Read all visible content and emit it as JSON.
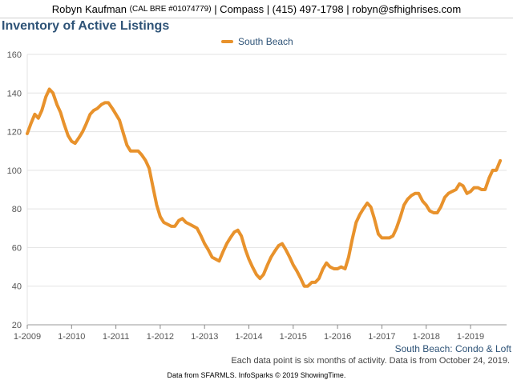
{
  "header": {
    "name": "Robyn Kaufman",
    "license": "(CAL BRE #01074779)",
    "rest": "| Compass | (415) 497-1798 | robyn@sfhighrises.com"
  },
  "chart_data": {
    "type": "line",
    "title": "Inventory of Active Listings",
    "xlabel": "",
    "ylabel": "",
    "xlim": [
      2009,
      2019.75
    ],
    "ylim": [
      20,
      160
    ],
    "y_ticks": [
      20,
      40,
      60,
      80,
      100,
      120,
      140,
      160
    ],
    "x_tick_labels": [
      "1-2009",
      "1-2010",
      "1-2011",
      "1-2012",
      "1-2013",
      "1-2014",
      "1-2015",
      "1-2016",
      "1-2017",
      "1-2018",
      "1-2019"
    ],
    "grid": "horizontal",
    "legend": "top-center",
    "line_color": "#e8922c",
    "series": [
      {
        "name": "South Beach",
        "points": [
          [
            2009.0,
            119
          ],
          [
            2009.08,
            124
          ],
          [
            2009.17,
            129
          ],
          [
            2009.25,
            127
          ],
          [
            2009.33,
            131
          ],
          [
            2009.42,
            138
          ],
          [
            2009.5,
            142
          ],
          [
            2009.58,
            140
          ],
          [
            2009.67,
            134
          ],
          [
            2009.75,
            130
          ],
          [
            2009.83,
            124
          ],
          [
            2009.92,
            118
          ],
          [
            2010.0,
            115
          ],
          [
            2010.08,
            114
          ],
          [
            2010.17,
            117
          ],
          [
            2010.25,
            120
          ],
          [
            2010.33,
            124
          ],
          [
            2010.42,
            129
          ],
          [
            2010.5,
            131
          ],
          [
            2010.58,
            132
          ],
          [
            2010.67,
            134
          ],
          [
            2010.75,
            135
          ],
          [
            2010.83,
            135
          ],
          [
            2010.92,
            132
          ],
          [
            2011.0,
            129
          ],
          [
            2011.08,
            126
          ],
          [
            2011.17,
            119
          ],
          [
            2011.25,
            113
          ],
          [
            2011.33,
            110
          ],
          [
            2011.42,
            110
          ],
          [
            2011.5,
            110
          ],
          [
            2011.58,
            108
          ],
          [
            2011.67,
            105
          ],
          [
            2011.75,
            101
          ],
          [
            2011.83,
            92
          ],
          [
            2011.92,
            82
          ],
          [
            2012.0,
            76
          ],
          [
            2012.08,
            73
          ],
          [
            2012.17,
            72
          ],
          [
            2012.25,
            71
          ],
          [
            2012.33,
            71
          ],
          [
            2012.42,
            74
          ],
          [
            2012.5,
            75
          ],
          [
            2012.58,
            73
          ],
          [
            2012.67,
            72
          ],
          [
            2012.75,
            71
          ],
          [
            2012.83,
            70
          ],
          [
            2012.92,
            66
          ],
          [
            2013.0,
            62
          ],
          [
            2013.08,
            59
          ],
          [
            2013.17,
            55
          ],
          [
            2013.25,
            54
          ],
          [
            2013.33,
            53
          ],
          [
            2013.42,
            58
          ],
          [
            2013.5,
            62
          ],
          [
            2013.58,
            65
          ],
          [
            2013.67,
            68
          ],
          [
            2013.75,
            69
          ],
          [
            2013.83,
            66
          ],
          [
            2013.92,
            59
          ],
          [
            2014.0,
            54
          ],
          [
            2014.08,
            50
          ],
          [
            2014.17,
            46
          ],
          [
            2014.25,
            44
          ],
          [
            2014.33,
            46
          ],
          [
            2014.42,
            51
          ],
          [
            2014.5,
            55
          ],
          [
            2014.58,
            58
          ],
          [
            2014.67,
            61
          ],
          [
            2014.75,
            62
          ],
          [
            2014.83,
            59
          ],
          [
            2014.92,
            55
          ],
          [
            2015.0,
            51
          ],
          [
            2015.08,
            48
          ],
          [
            2015.17,
            44
          ],
          [
            2015.25,
            40
          ],
          [
            2015.33,
            40
          ],
          [
            2015.42,
            42
          ],
          [
            2015.5,
            42
          ],
          [
            2015.58,
            44
          ],
          [
            2015.67,
            49
          ],
          [
            2015.75,
            52
          ],
          [
            2015.83,
            50
          ],
          [
            2015.92,
            49
          ],
          [
            2016.0,
            49
          ],
          [
            2016.08,
            50
          ],
          [
            2016.17,
            49
          ],
          [
            2016.25,
            55
          ],
          [
            2016.33,
            64
          ],
          [
            2016.42,
            73
          ],
          [
            2016.5,
            77
          ],
          [
            2016.58,
            80
          ],
          [
            2016.67,
            83
          ],
          [
            2016.75,
            81
          ],
          [
            2016.83,
            75
          ],
          [
            2016.92,
            67
          ],
          [
            2017.0,
            65
          ],
          [
            2017.08,
            65
          ],
          [
            2017.17,
            65
          ],
          [
            2017.25,
            66
          ],
          [
            2017.33,
            70
          ],
          [
            2017.42,
            76
          ],
          [
            2017.5,
            82
          ],
          [
            2017.58,
            85
          ],
          [
            2017.67,
            87
          ],
          [
            2017.75,
            88
          ],
          [
            2017.83,
            88
          ],
          [
            2017.92,
            84
          ],
          [
            2018.0,
            82
          ],
          [
            2018.08,
            79
          ],
          [
            2018.17,
            78
          ],
          [
            2018.25,
            78
          ],
          [
            2018.33,
            81
          ],
          [
            2018.42,
            86
          ],
          [
            2018.5,
            88
          ],
          [
            2018.58,
            89
          ],
          [
            2018.67,
            90
          ],
          [
            2018.75,
            93
          ],
          [
            2018.83,
            92
          ],
          [
            2018.92,
            88
          ],
          [
            2019.0,
            89
          ],
          [
            2019.08,
            91
          ],
          [
            2019.17,
            91
          ],
          [
            2019.25,
            90
          ],
          [
            2019.33,
            90
          ],
          [
            2019.42,
            96
          ],
          [
            2019.5,
            100
          ],
          [
            2019.58,
            100
          ],
          [
            2019.67,
            105
          ]
        ]
      }
    ]
  },
  "subtitle": "South Beach: Condo & Loft",
  "footnote": "Each data point is six months of activity. Data is from October 24, 2019.",
  "source": "Data from SFARMLS. InfoSparks © 2019 ShowingTime."
}
